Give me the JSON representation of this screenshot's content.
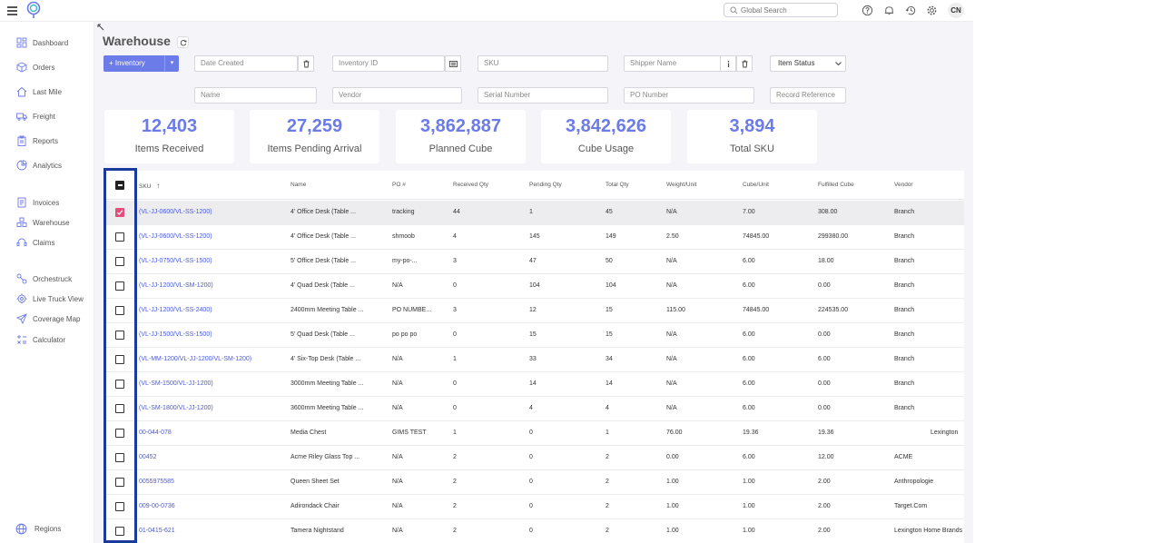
{
  "topbar": {
    "search_placeholder": "Global Search",
    "avatar_initials": "CN",
    "icons": [
      "help-icon",
      "bell-icon",
      "history-icon",
      "gear-icon"
    ]
  },
  "sidebar": {
    "items": [
      {
        "label": "Dashboard",
        "icon": "dashboard-icon"
      },
      {
        "label": "Orders",
        "icon": "box-icon"
      },
      {
        "label": "Last Mile",
        "icon": "house-icon"
      },
      {
        "label": "Freight",
        "icon": "truck-icon"
      },
      {
        "label": "Reports",
        "icon": "clipboard-icon"
      },
      {
        "label": "Analytics",
        "icon": "chart-icon"
      },
      {
        "label": "Invoices",
        "icon": "invoice-icon"
      },
      {
        "label": "Warehouse",
        "icon": "warehouse-icon"
      },
      {
        "label": "Claims",
        "icon": "headset-icon"
      },
      {
        "label": "Orchestruck",
        "icon": "orchestruck-icon"
      },
      {
        "label": "Live Truck View",
        "icon": "target-icon"
      },
      {
        "label": "Coverage Map",
        "icon": "send-icon"
      },
      {
        "label": "Calculator",
        "icon": "calculator-icon"
      }
    ],
    "footer": {
      "label": "Regions",
      "icon": "globe-icon"
    }
  },
  "page": {
    "title": "Warehouse",
    "inventory_button": "+ Inventory"
  },
  "filters": {
    "date_created": "Date Created",
    "inventory_id": "Inventory ID",
    "sku": "SKU",
    "shipper_name": "Shipper Name",
    "item_status": "Item Status",
    "name": "Name",
    "vendor": "Vendor",
    "serial_number": "Serial Number",
    "po_number": "PO Number",
    "record_reference": "Record Reference"
  },
  "stats": [
    {
      "value": "12,403",
      "label": "Items Received"
    },
    {
      "value": "27,259",
      "label": "Items Pending Arrival"
    },
    {
      "value": "3,862,887",
      "label": "Planned Cube"
    },
    {
      "value": "3,842,626",
      "label": "Cube Usage"
    },
    {
      "value": "3,894",
      "label": "Total SKU"
    }
  ],
  "table": {
    "headers": {
      "sku": "SKU",
      "name": "Name",
      "po": "PO #",
      "received_qty": "Received Qty",
      "pending_qty": "Pending Qty",
      "total_qty": "Total Qty",
      "weight_unit": "Weight/Unit",
      "cube_unit": "Cube/Unit",
      "fulfilled_cube": "Fulfilled Cube",
      "vendor": "Vendor"
    },
    "sort": {
      "column": "sku",
      "direction": "asc"
    },
    "rows": [
      {
        "checked": true,
        "sku": "(VL-JJ-0600/VL-SS-1200)",
        "name": "4' Office Desk (Table ...",
        "po": "tracking",
        "received": "44",
        "pending": "1",
        "total": "45",
        "weight": "N/A",
        "cube": "7.00",
        "fulfilled": "308.00",
        "vendor": "Branch"
      },
      {
        "checked": false,
        "sku": "(VL-JJ-0600/VL-SS-1200)",
        "name": "4' Office Desk (Table ...",
        "po": "shmoob",
        "received": "4",
        "pending": "145",
        "total": "149",
        "weight": "2.50",
        "cube": "74845.00",
        "fulfilled": "299380.00",
        "vendor": "Branch"
      },
      {
        "checked": false,
        "sku": "(VL-JJ-0750/VL-SS-1500)",
        "name": "5' Office Desk (Table ...",
        "po": "my-po-...",
        "received": "3",
        "pending": "47",
        "total": "50",
        "weight": "N/A",
        "cube": "6.00",
        "fulfilled": "18.00",
        "vendor": "Branch"
      },
      {
        "checked": false,
        "sku": "(VL-JJ-1200/VL-SM-1200)",
        "name": "4' Quad Desk (Table ...",
        "po": "N/A",
        "received": "0",
        "pending": "104",
        "total": "104",
        "weight": "N/A",
        "cube": "6.00",
        "fulfilled": "0.00",
        "vendor": "Branch"
      },
      {
        "checked": false,
        "sku": "(VL-JJ-1200/VL-SS-2400)",
        "name": "2400mm Meeting Table ...",
        "po": "PO NUMBE...",
        "received": "3",
        "pending": "12",
        "total": "15",
        "weight": "115.00",
        "cube": "74845.00",
        "fulfilled": "224535.00",
        "vendor": "Branch"
      },
      {
        "checked": false,
        "sku": "(VL-JJ-1500/VL-SS-1500)",
        "name": "5' Quad Desk (Table ...",
        "po": "po po po",
        "received": "0",
        "pending": "15",
        "total": "15",
        "weight": "N/A",
        "cube": "6.00",
        "fulfilled": "0.00",
        "vendor": "Branch"
      },
      {
        "checked": false,
        "sku": "(VL-MM-1200/VL-JJ-1200/VL-SM-1200)",
        "name": "4' Six-Top Desk (Table ...",
        "po": "N/A",
        "received": "1",
        "pending": "33",
        "total": "34",
        "weight": "N/A",
        "cube": "6.00",
        "fulfilled": "6.00",
        "vendor": "Branch"
      },
      {
        "checked": false,
        "sku": "(VL-SM-1500/VL-JJ-1200)",
        "name": "3000mm Meeting Table ...",
        "po": "N/A",
        "received": "0",
        "pending": "14",
        "total": "14",
        "weight": "N/A",
        "cube": "6.00",
        "fulfilled": "0.00",
        "vendor": "Branch"
      },
      {
        "checked": false,
        "sku": "(VL-SM-1800/VL-JJ-1200)",
        "name": "3600mm Meeting Table ...",
        "po": "N/A",
        "received": "0",
        "pending": "4",
        "total": "4",
        "weight": "N/A",
        "cube": "6.00",
        "fulfilled": "0.00",
        "vendor": "Branch"
      },
      {
        "checked": false,
        "sku": "00-044-078",
        "name": "Media Chest",
        "po": "GIMS TEST",
        "received": "1",
        "pending": "0",
        "total": "1",
        "weight": "76.00",
        "cube": "19.36",
        "fulfilled": "19.36",
        "vendor": "Lexington"
      },
      {
        "checked": false,
        "sku": "00452",
        "name": "Acme Riley Glass Top ...",
        "po": "N/A",
        "received": "2",
        "pending": "0",
        "total": "2",
        "weight": "0.00",
        "cube": "6.00",
        "fulfilled": "12.00",
        "vendor": "ACME"
      },
      {
        "checked": false,
        "sku": "0055975585",
        "name": "Queen Sheet Set",
        "po": "N/A",
        "received": "2",
        "pending": "0",
        "total": "2",
        "weight": "1.00",
        "cube": "1.00",
        "fulfilled": "2.00",
        "vendor": "Anthropologie"
      },
      {
        "checked": false,
        "sku": "009-00-0736",
        "name": "Adirondack Chair",
        "po": "N/A",
        "received": "2",
        "pending": "0",
        "total": "2",
        "weight": "1.00",
        "cube": "1.00",
        "fulfilled": "2.00",
        "vendor": "Target.Com"
      },
      {
        "checked": false,
        "sku": "01-0415-621",
        "name": "Tamera Nightstand",
        "po": "N/A",
        "received": "2",
        "pending": "0",
        "total": "2",
        "weight": "1.00",
        "cube": "1.00",
        "fulfilled": "2.00",
        "vendor": "Lexington Home Brands"
      }
    ]
  },
  "colors": {
    "accent": "#6b7be8",
    "checkbox_checked": "#e24d7c",
    "highlight": "#1a3a9c",
    "link": "#4a5ad8"
  }
}
